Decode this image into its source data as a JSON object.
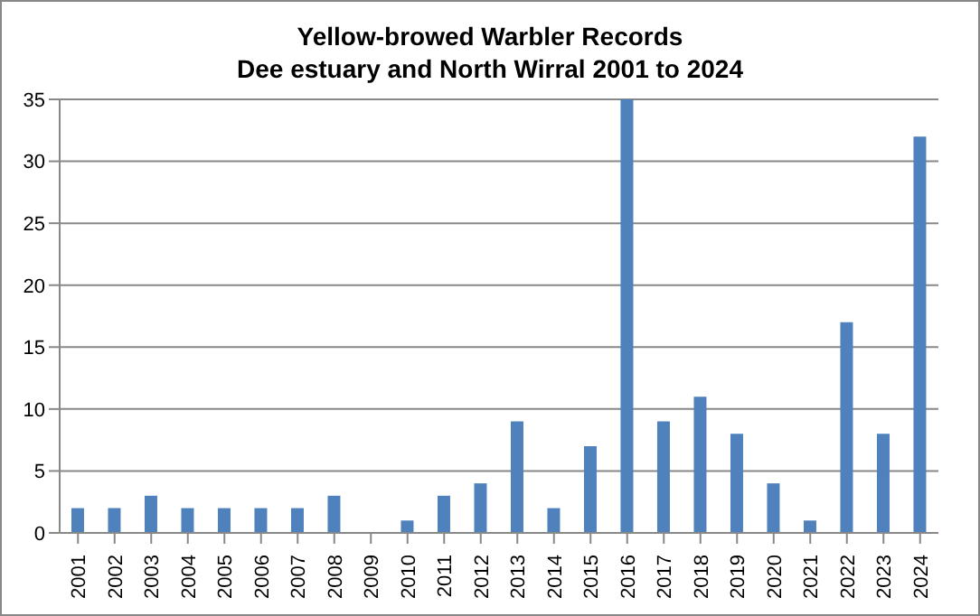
{
  "chart_data": {
    "type": "bar",
    "title": "Yellow-browed Warbler Records\nDee estuary and North Wirral 2001 to 2024",
    "categories": [
      "2001",
      "2002",
      "2003",
      "2004",
      "2005",
      "2006",
      "2007",
      "2008",
      "2009",
      "2010",
      "2011",
      "2012",
      "2013",
      "2014",
      "2015",
      "2016",
      "2017",
      "2018",
      "2019",
      "2020",
      "2021",
      "2022",
      "2023",
      "2024"
    ],
    "values": [
      2,
      2,
      3,
      2,
      2,
      2,
      2,
      3,
      0,
      1,
      3,
      4,
      9,
      2,
      7,
      35,
      9,
      11,
      8,
      4,
      1,
      17,
      8,
      32
    ],
    "color": "#4f81bd",
    "ylim": [
      0,
      35
    ],
    "yticks": [
      0,
      5,
      10,
      15,
      20,
      25,
      30,
      35
    ],
    "grid": "y",
    "legend": false
  }
}
